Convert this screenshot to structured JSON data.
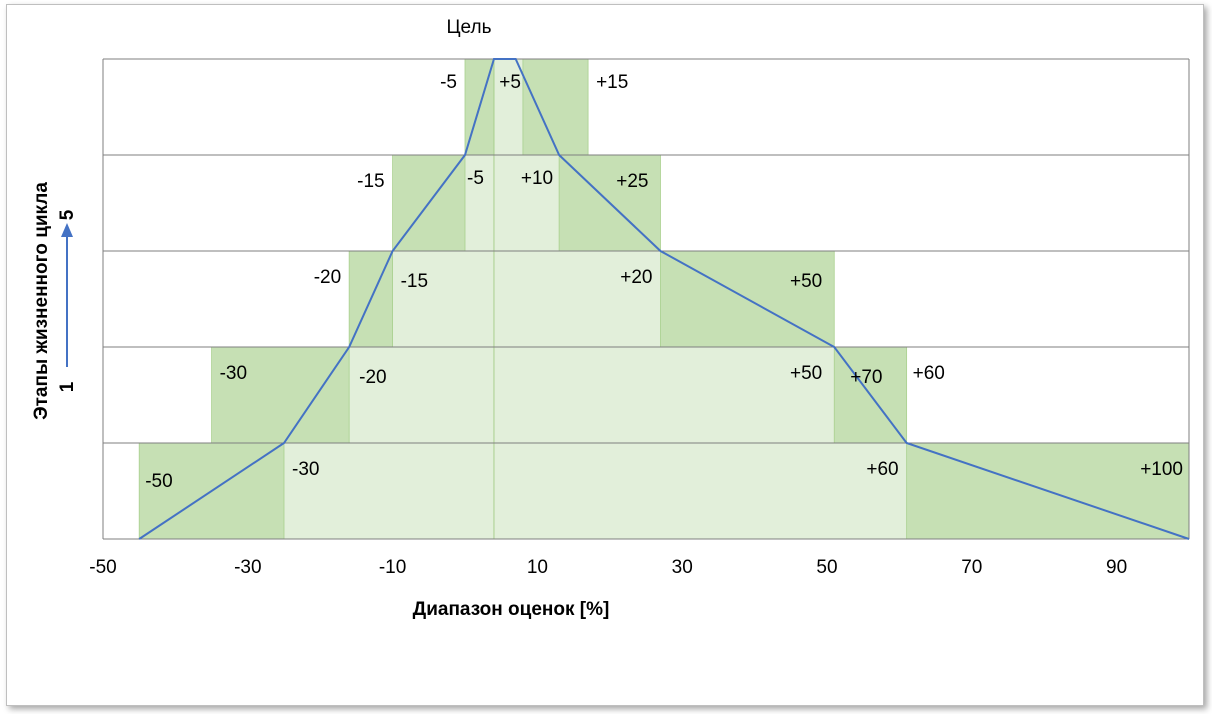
{
  "colors": {
    "outer_band": "#c6e0b4",
    "inner_band": "#e2efda",
    "band_edge": "#a9d08e",
    "line": "#4472c4",
    "grid": "#7f7f7f",
    "arrow": "#4472c4"
  },
  "target_label": "Цель",
  "chart_data": {
    "type": "area",
    "xlabel": "Диапазон оценок [%]",
    "ylabel": "Этапы жизненного цикла",
    "y_arrow_start": "1",
    "y_arrow_end": "5",
    "xlim": [
      -50,
      100
    ],
    "x_ticks": [
      -50,
      -30,
      -10,
      10,
      30,
      50,
      70,
      90
    ],
    "x_tick_labels": [
      "-50",
      "-30",
      "-10",
      "10",
      "30",
      "50",
      "70",
      "90"
    ],
    "ylim": [
      0,
      5
    ],
    "grid": "horizontal",
    "target_x": 4,
    "stages": [
      {
        "stage": 1,
        "outer_low": -45,
        "inner_low": -25,
        "inner_high": 61,
        "outer_high": 100,
        "low_label": "-50",
        "inner_low_label": "-30",
        "inner_high_label": "+60",
        "high_label": "+100"
      },
      {
        "stage": 2,
        "outer_low": -35,
        "inner_low": -16,
        "inner_high": 51,
        "outer_high": 61,
        "low_label": "-30",
        "inner_low_label": "-20",
        "inner_high_label": "+50",
        "high_label": "+70",
        "extra_label": "+60"
      },
      {
        "stage": 3,
        "outer_low": -16,
        "inner_low": -10,
        "inner_high": 27,
        "outer_high": 51,
        "low_label": "-20",
        "inner_low_label": "-15",
        "inner_high_label": "+20",
        "high_label": "+50"
      },
      {
        "stage": 4,
        "outer_low": -10,
        "inner_low": 0,
        "inner_high": 13,
        "outer_high": 27,
        "low_label": "-15",
        "inner_low_label": "-5",
        "inner_high_label": "+10",
        "high_label": "+25"
      },
      {
        "stage": 5,
        "outer_low": 0,
        "inner_low": 4,
        "inner_high": 8,
        "outer_high": 17,
        "low_label": "-5",
        "inner_low_label": "",
        "inner_high_label": "+5",
        "high_label": "+15"
      }
    ],
    "line_points": [
      {
        "x": -45,
        "y": 0
      },
      {
        "x": -25,
        "y": 1
      },
      {
        "x": -16,
        "y": 2
      },
      {
        "x": -10,
        "y": 3
      },
      {
        "x": 0,
        "y": 4
      },
      {
        "x": 4,
        "y": 5
      },
      {
        "x": 7,
        "y": 5
      },
      {
        "x": 13,
        "y": 4
      },
      {
        "x": 27,
        "y": 3
      },
      {
        "x": 51,
        "y": 2
      },
      {
        "x": 61,
        "y": 1
      },
      {
        "x": 100,
        "y": 0
      }
    ]
  }
}
